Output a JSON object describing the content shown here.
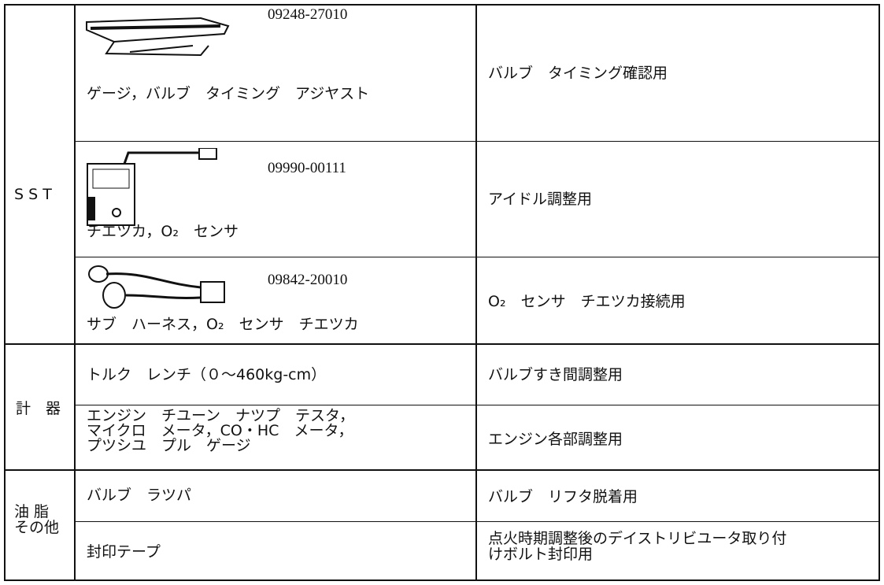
{
  "table": {
    "groups": [
      {
        "label": "S S T",
        "rows": [
          {
            "part_number": "09248-27010",
            "name": "ゲージ，バルブ　タイミング　アジヤスト",
            "purpose": "バルブ　タイミング確認用"
          },
          {
            "part_number": "09990-00111",
            "name": "チエツカ，O₂　センサ",
            "purpose": "アイドル調整用"
          },
          {
            "part_number": "09842-20010",
            "name": "サブ　ハーネス，O₂　センサ　チエツカ",
            "purpose": "O₂　センサ　チエツカ接続用"
          }
        ]
      },
      {
        "label": "計　器",
        "rows": [
          {
            "name": "トルク　レンチ（０～460kg-cm）",
            "purpose": "バルブすき間調整用"
          },
          {
            "name": "エンジン　チユーン　ナツプ　テスタ，\nマイクロ　メータ，CO・HC　メータ，\nプツシユ　プル　ゲージ",
            "purpose": "エンジン各部調整用"
          }
        ]
      },
      {
        "label": "油 脂\nその他",
        "rows": [
          {
            "name": "バルブ　ラツパ",
            "purpose": "バルブ　リフタ脱着用"
          },
          {
            "name": "封印テープ",
            "purpose": "点火時期調整後のデイストリビユータ取り付\nけボルト封印用"
          }
        ]
      }
    ]
  }
}
